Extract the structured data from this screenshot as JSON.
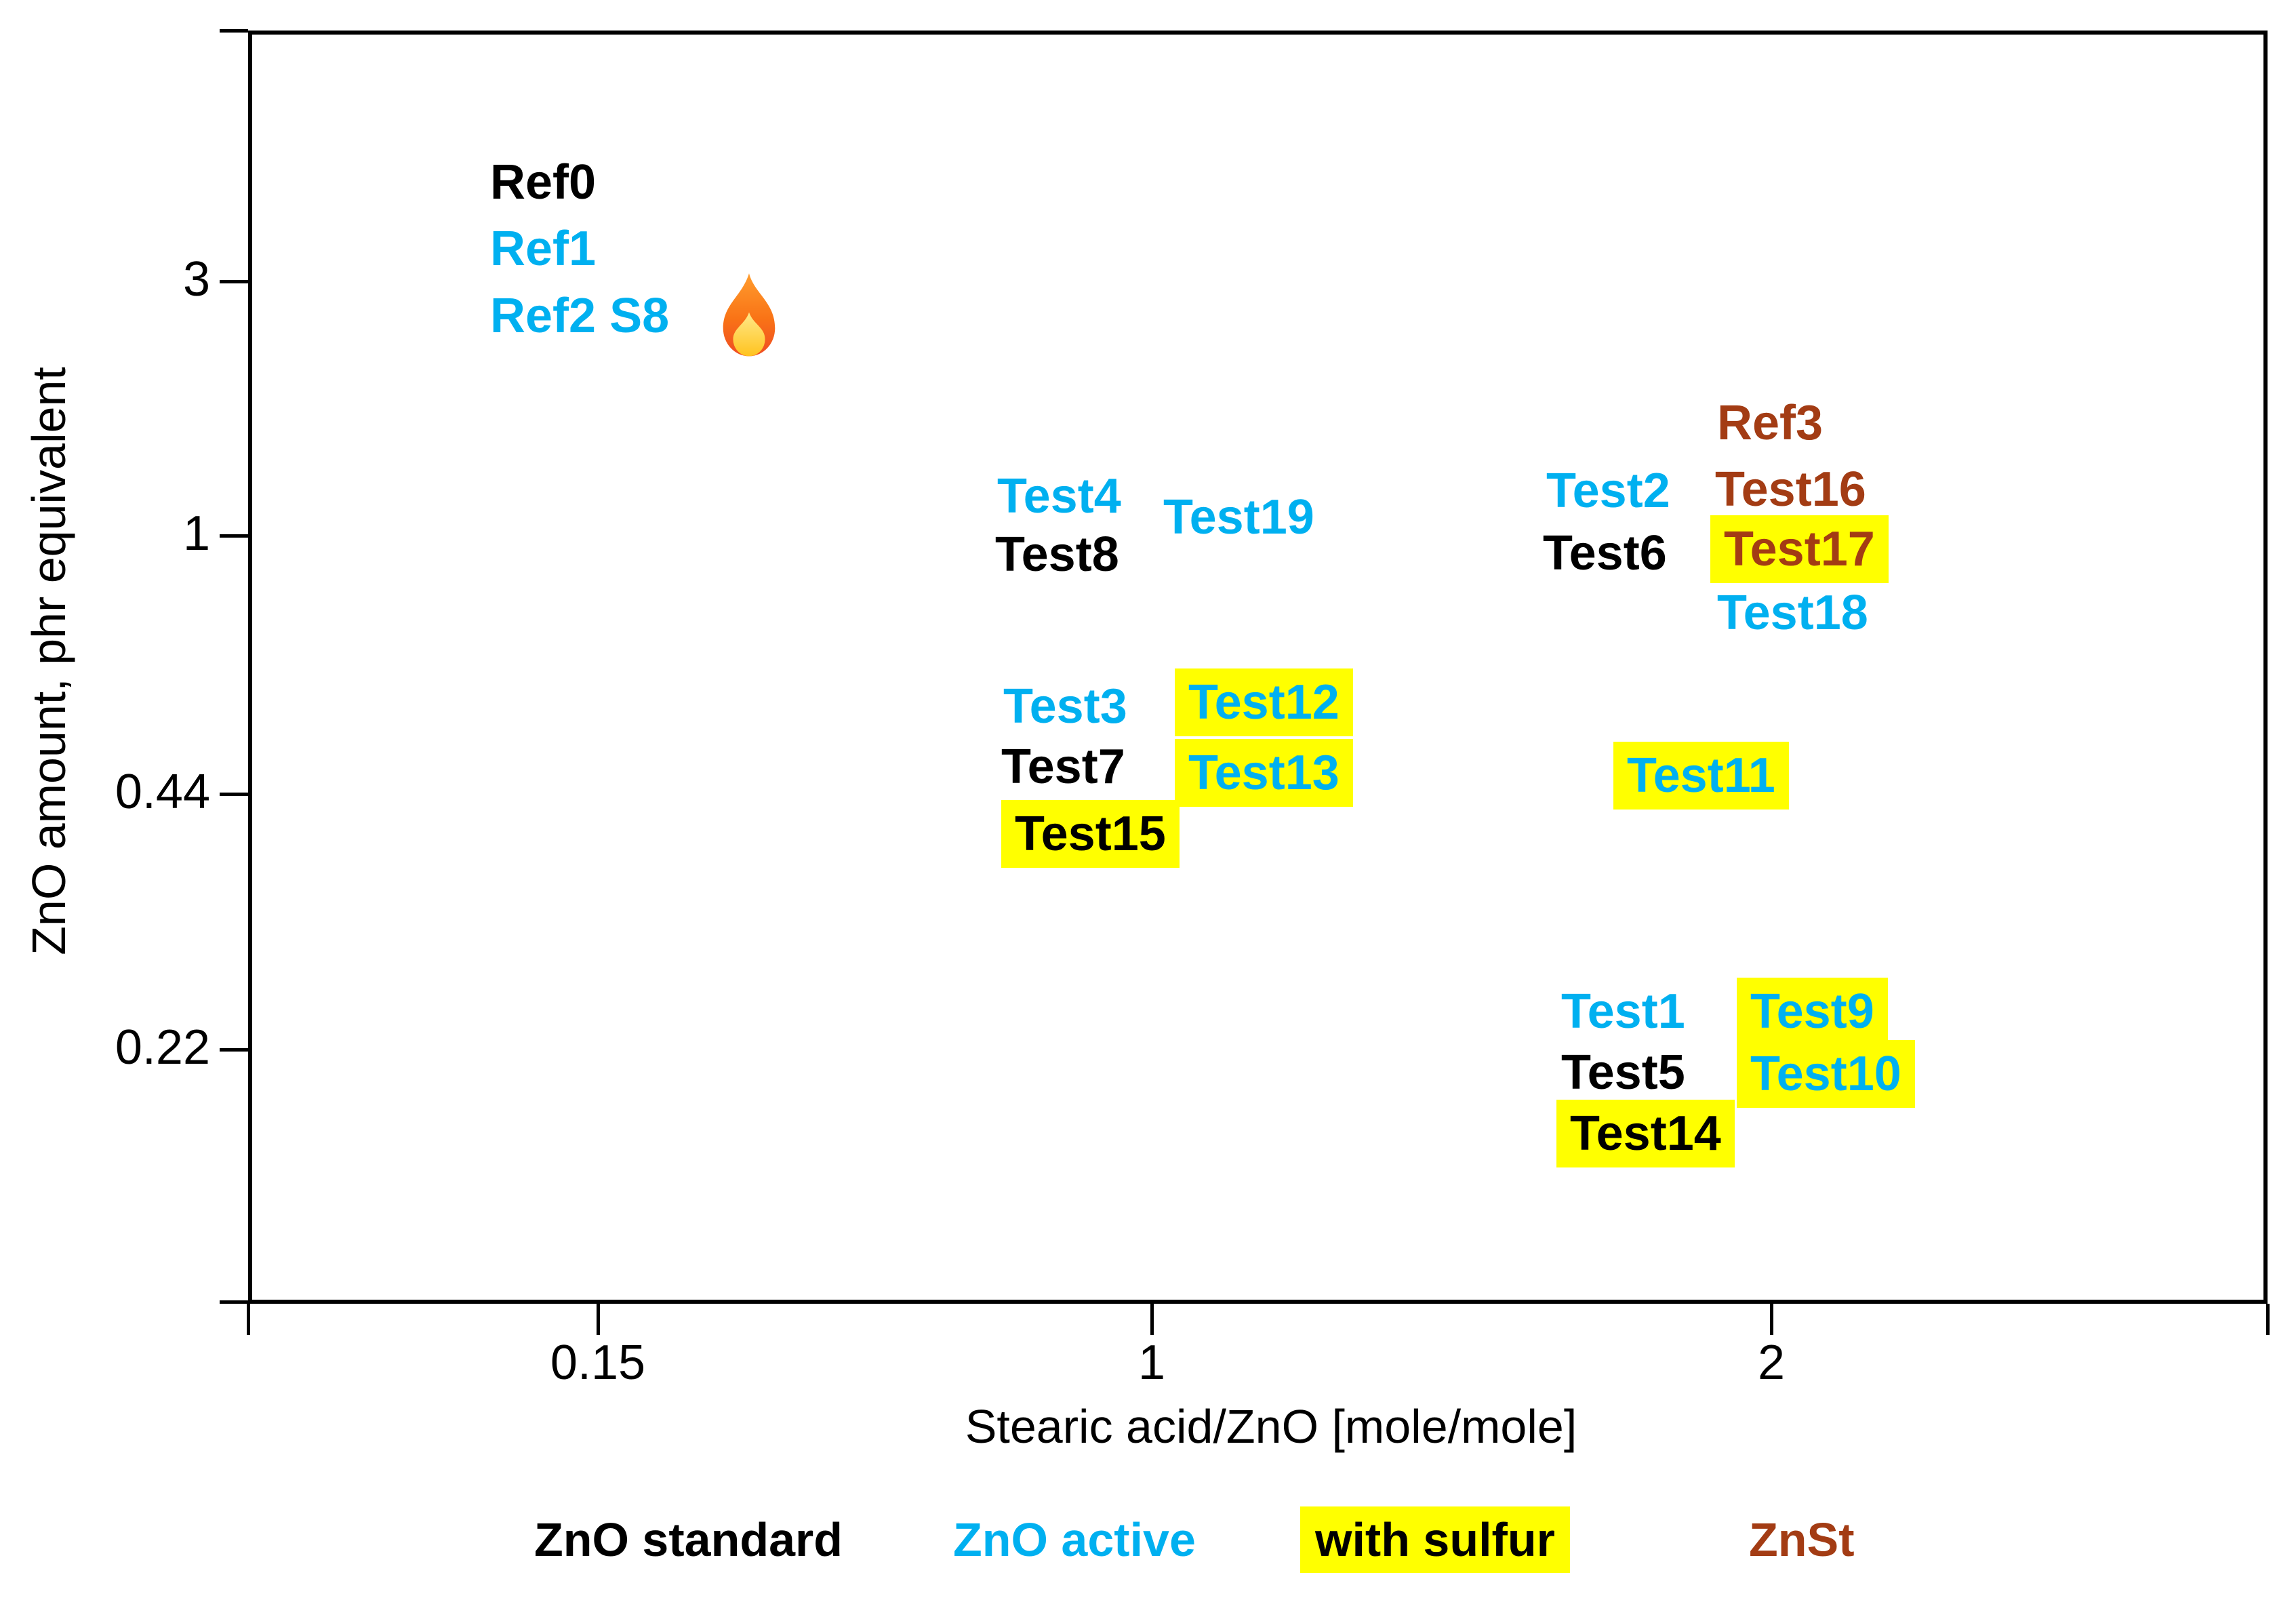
{
  "colors": {
    "standard": "#000000",
    "active": "#00B0F0",
    "znst": "#A33C14",
    "highlight": "#FFFF00",
    "axis": "#000000"
  },
  "chart_data": {
    "type": "scatter",
    "title": "",
    "xlabel": "Stearic acid/ZnO [mole/mole]",
    "ylabel": "ZnO amount, phr equivalent",
    "x_tick_labels": [
      "0.15",
      "1",
      "2"
    ],
    "y_tick_labels": [
      "3",
      "1",
      "0.44",
      "0.22"
    ],
    "xlim": [
      "<0.15",
      ">2"
    ],
    "ylim": [
      "<0.22",
      ">3"
    ],
    "grid": false,
    "legend_position": "bottom",
    "legend": [
      {
        "text": "ZnO standard",
        "type": "standard",
        "sulfur": false,
        "left": 788,
        "top": 2236
      },
      {
        "text": "ZnO active",
        "type": "active",
        "sulfur": false,
        "left": 1406,
        "top": 2236
      },
      {
        "text": "with sulfur",
        "type": "standard",
        "sulfur": true,
        "left": 1918,
        "top": 2222
      },
      {
        "text": "ZnSt",
        "type": "znst",
        "sulfur": false,
        "left": 2580,
        "top": 2236
      }
    ],
    "y_ticks": [
      {
        "label": "3",
        "y": 415,
        "label_top": 376
      },
      {
        "label": "1",
        "y": 790,
        "label_top": 751
      },
      {
        "label": "0.44",
        "y": 1171,
        "label_top": 1132
      },
      {
        "label": "0.22",
        "y": 1548,
        "label_top": 1509
      }
    ],
    "y_boundary_ticks": [
      45,
      1920
    ],
    "x_ticks": [
      {
        "label": "0.15",
        "x": 882
      },
      {
        "label": "1",
        "x": 1699
      },
      {
        "label": "2",
        "x": 2613
      }
    ],
    "x_boundary_ticks": [
      366,
      3345
    ],
    "flame_icon": {
      "attached_to": "Ref2 S8",
      "left": 1052,
      "top": 400
    },
    "points": [
      {
        "text": "Ref0",
        "x": 0.15,
        "y": 3,
        "type": "standard",
        "sulfur": false,
        "left": 723,
        "top": 233
      },
      {
        "text": "Ref1",
        "x": 0.15,
        "y": 3,
        "type": "active",
        "sulfur": false,
        "left": 723,
        "top": 331
      },
      {
        "text": "Ref2 S8",
        "x": 0.15,
        "y": 3,
        "type": "active",
        "sulfur": false,
        "left": 723,
        "top": 430
      },
      {
        "text": "Test4",
        "x": 1,
        "y": 1,
        "type": "active",
        "sulfur": false,
        "left": 1471,
        "top": 696
      },
      {
        "text": "Test19",
        "x": 1,
        "y": 1,
        "type": "active",
        "sulfur": false,
        "left": 1716,
        "top": 727
      },
      {
        "text": "Test8",
        "x": 1,
        "y": 1,
        "type": "standard",
        "sulfur": false,
        "left": 1468,
        "top": 782
      },
      {
        "text": "Test3",
        "x": 1,
        "y": 0.44,
        "type": "active",
        "sulfur": false,
        "left": 1480,
        "top": 1006
      },
      {
        "text": "Test12",
        "x": 1,
        "y": 0.44,
        "type": "active",
        "sulfur": true,
        "left": 1733,
        "top": 986
      },
      {
        "text": "Test7",
        "x": 1,
        "y": 0.44,
        "type": "standard",
        "sulfur": false,
        "left": 1477,
        "top": 1095
      },
      {
        "text": "Test13",
        "x": 1,
        "y": 0.44,
        "type": "active",
        "sulfur": true,
        "left": 1733,
        "top": 1090
      },
      {
        "text": "Test15",
        "x": 1,
        "y": 0.44,
        "type": "standard",
        "sulfur": true,
        "left": 1477,
        "top": 1180
      },
      {
        "text": "Ref3",
        "x": 2,
        "y": 1,
        "type": "znst",
        "sulfur": false,
        "left": 2533,
        "top": 588
      },
      {
        "text": "Test2",
        "x": 2,
        "y": 1,
        "type": "active",
        "sulfur": false,
        "left": 2281,
        "top": 688
      },
      {
        "text": "Test16",
        "x": 2,
        "y": 1,
        "type": "znst",
        "sulfur": false,
        "left": 2530,
        "top": 686
      },
      {
        "text": "Test6",
        "x": 2,
        "y": 1,
        "type": "standard",
        "sulfur": false,
        "left": 2276,
        "top": 780
      },
      {
        "text": "Test17",
        "x": 2,
        "y": 1,
        "type": "znst",
        "sulfur": true,
        "left": 2523,
        "top": 760
      },
      {
        "text": "Test18",
        "x": 2,
        "y": 1,
        "type": "active",
        "sulfur": false,
        "left": 2533,
        "top": 868
      },
      {
        "text": "Test11",
        "x": 2,
        "y": 0.44,
        "type": "active",
        "sulfur": true,
        "left": 2380,
        "top": 1094
      },
      {
        "text": "Test1",
        "x": 2,
        "y": 0.22,
        "type": "active",
        "sulfur": false,
        "left": 2303,
        "top": 1456
      },
      {
        "text": "Test9",
        "x": 2,
        "y": 0.22,
        "type": "active",
        "sulfur": true,
        "left": 2562,
        "top": 1442
      },
      {
        "text": "Test5",
        "x": 2,
        "y": 0.22,
        "type": "standard",
        "sulfur": false,
        "left": 2303,
        "top": 1546
      },
      {
        "text": "Test10",
        "x": 2,
        "y": 0.22,
        "type": "active",
        "sulfur": true,
        "left": 2562,
        "top": 1534
      },
      {
        "text": "Test14",
        "x": 2,
        "y": 0.22,
        "type": "standard",
        "sulfur": true,
        "left": 2296,
        "top": 1622
      }
    ]
  }
}
